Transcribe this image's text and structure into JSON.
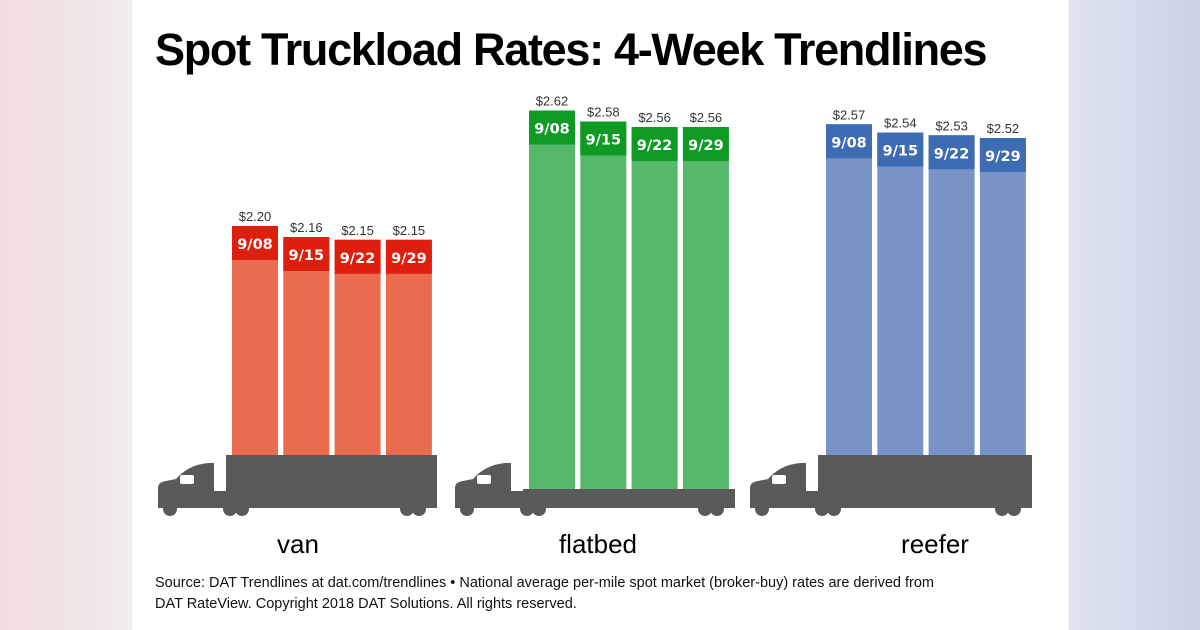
{
  "title": "Spot Truckload Rates: 4-Week Trendlines",
  "chart_data": {
    "type": "bar",
    "title": "Spot Truckload Rates: 4-Week Trendlines",
    "categories": [
      "9/08",
      "9/15",
      "9/22",
      "9/29"
    ],
    "groups": [
      {
        "label": "van",
        "values": [
          2.2,
          2.16,
          2.15,
          2.15
        ],
        "value_labels": [
          "$2.20",
          "$2.16",
          "$2.15",
          "$2.15"
        ],
        "color": "#ea6b4d",
        "header_color": "#de1e0e"
      },
      {
        "label": "flatbed",
        "values": [
          2.62,
          2.58,
          2.56,
          2.56
        ],
        "value_labels": [
          "$2.62",
          "$2.58",
          "$2.56",
          "$2.56"
        ],
        "color": "#55b86a",
        "header_color": "#0f9a23"
      },
      {
        "label": "reefer",
        "values": [
          2.57,
          2.54,
          2.53,
          2.52
        ],
        "value_labels": [
          "$2.57",
          "$2.54",
          "$2.53",
          "$2.52"
        ],
        "color": "#7893c6",
        "header_color": "#3d6bb4"
      }
    ],
    "unit": "$ per mile",
    "truck_color": "#5a5a5a"
  },
  "footer": {
    "line1": "Source: DAT Trendlines at dat.com/trendlines • National average per-mile spot market (broker-buy) rates are derived from",
    "line2": "DAT RateView. Copyright 2018 DAT Solutions. All rights reserved."
  }
}
